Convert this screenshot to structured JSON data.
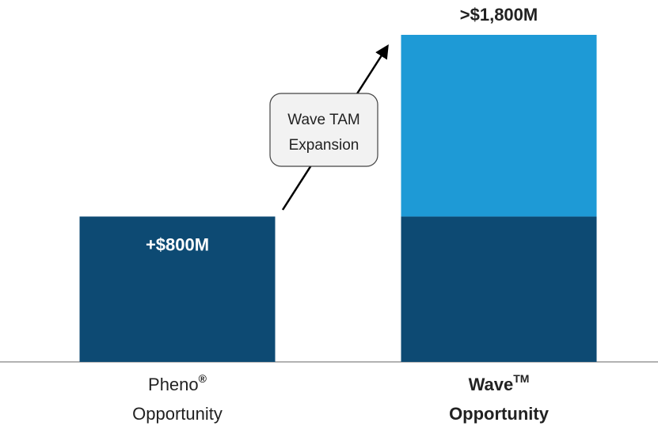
{
  "chart_data": {
    "type": "stacked_bar",
    "categories": [
      {
        "name": "Pheno",
        "mark": "®",
        "line2": "Opportunity"
      },
      {
        "name": "Wave",
        "mark": "TM",
        "line2": "Opportunity"
      }
    ],
    "highlight_category": 1,
    "series": [
      {
        "color": "#0d4a73",
        "values": [
          800,
          800
        ],
        "value_labels": [
          "+$800M",
          null
        ]
      },
      {
        "color": "#1e9ad6",
        "values": [
          null,
          1000
        ]
      }
    ],
    "totals": [
      null,
      1800
    ],
    "total_labels": [
      null,
      ">$1,800M"
    ],
    "annotation": [
      "Wave TAM",
      "Expansion"
    ]
  }
}
